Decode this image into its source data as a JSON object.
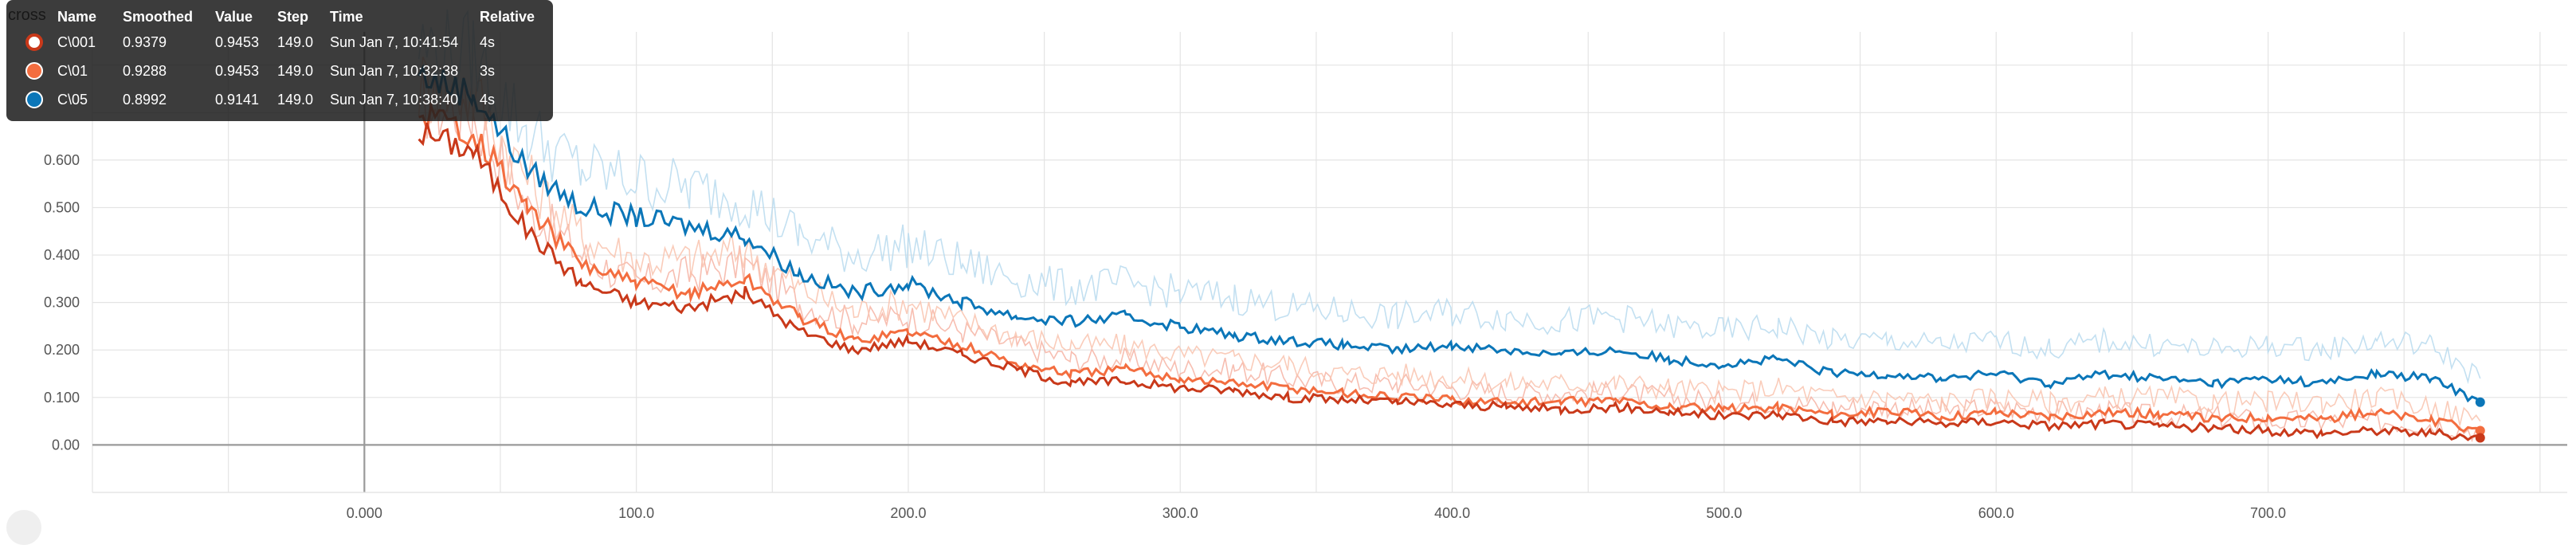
{
  "title_fragment": "cross",
  "tooltip": {
    "headers": [
      "Name",
      "Smoothed",
      "Value",
      "Step",
      "Time",
      "Relative"
    ],
    "rows": [
      {
        "name": "C\\001",
        "smoothed": "0.9379",
        "value": "0.9453",
        "step": "149.0",
        "time": "Sun Jan 7, 10:41:54",
        "relative": "4s",
        "color": "#c9391a",
        "hollow": true
      },
      {
        "name": "C\\01",
        "smoothed": "0.9288",
        "value": "0.9453",
        "step": "149.0",
        "time": "Sun Jan 7, 10:32:38",
        "relative": "3s",
        "color": "#f36d3f",
        "hollow": false
      },
      {
        "name": "C\\05",
        "smoothed": "0.8992",
        "value": "0.9141",
        "step": "149.0",
        "time": "Sun Jan 7, 10:38:40",
        "relative": "4s",
        "color": "#0b76b8",
        "hollow": false
      }
    ]
  },
  "chart_data": {
    "type": "line",
    "title": "",
    "xlabel": "",
    "ylabel": "",
    "xlim": [
      -100,
      810
    ],
    "ylim": [
      -0.1,
      0.87
    ],
    "x_ticks": [
      "0.000",
      "100.0",
      "200.0",
      "300.0",
      "400.0",
      "500.0",
      "600.0",
      "700.0"
    ],
    "x_tick_values": [
      0,
      100,
      200,
      300,
      400,
      500,
      600,
      700
    ],
    "y_ticks": [
      "0.00",
      "0.100",
      "0.200",
      "0.300",
      "0.400",
      "0.500",
      "0.600"
    ],
    "y_tick_values": [
      0.0,
      0.1,
      0.2,
      0.3,
      0.4,
      0.5,
      0.6
    ],
    "grid": true,
    "x": [
      20,
      40,
      60,
      80,
      100,
      120,
      140,
      160,
      180,
      200,
      220,
      240,
      260,
      280,
      300,
      320,
      340,
      360,
      380,
      400,
      420,
      440,
      460,
      480,
      500,
      520,
      540,
      560,
      580,
      600,
      620,
      640,
      660,
      680,
      700,
      720,
      740,
      760,
      778
    ],
    "series": [
      {
        "name": "C\\001",
        "color": "#c9391a",
        "raw_color": "#f6b3a3",
        "smoothed": [
          0.66,
          0.62,
          0.45,
          0.34,
          0.3,
          0.29,
          0.32,
          0.24,
          0.2,
          0.22,
          0.19,
          0.16,
          0.13,
          0.135,
          0.12,
          0.115,
          0.1,
          0.095,
          0.09,
          0.085,
          0.08,
          0.075,
          0.08,
          0.07,
          0.06,
          0.065,
          0.05,
          0.05,
          0.045,
          0.05,
          0.04,
          0.045,
          0.04,
          0.035,
          0.03,
          0.025,
          0.03,
          0.025,
          0.015
        ],
        "raw": [
          0.72,
          0.7,
          0.5,
          0.4,
          0.34,
          0.36,
          0.38,
          0.3,
          0.26,
          0.27,
          0.24,
          0.21,
          0.18,
          0.18,
          0.16,
          0.16,
          0.14,
          0.13,
          0.13,
          0.12,
          0.11,
          0.11,
          0.11,
          0.1,
          0.09,
          0.09,
          0.08,
          0.08,
          0.07,
          0.08,
          0.07,
          0.07,
          0.06,
          0.06,
          0.05,
          0.05,
          0.05,
          0.045,
          0.03
        ]
      },
      {
        "name": "C\\01",
        "color": "#f36d3f",
        "raw_color": "#f9c3ae",
        "smoothed": [
          0.7,
          0.66,
          0.5,
          0.38,
          0.34,
          0.32,
          0.35,
          0.27,
          0.22,
          0.24,
          0.21,
          0.17,
          0.15,
          0.16,
          0.14,
          0.13,
          0.12,
          0.11,
          0.1,
          0.095,
          0.09,
          0.09,
          0.095,
          0.08,
          0.075,
          0.08,
          0.065,
          0.07,
          0.06,
          0.07,
          0.06,
          0.07,
          0.065,
          0.055,
          0.06,
          0.055,
          0.07,
          0.05,
          0.03
        ],
        "raw": [
          0.76,
          0.74,
          0.56,
          0.44,
          0.39,
          0.39,
          0.41,
          0.33,
          0.28,
          0.3,
          0.26,
          0.23,
          0.21,
          0.21,
          0.19,
          0.18,
          0.17,
          0.15,
          0.15,
          0.14,
          0.13,
          0.13,
          0.13,
          0.12,
          0.11,
          0.12,
          0.1,
          0.1,
          0.09,
          0.1,
          0.09,
          0.1,
          0.1,
          0.09,
          0.09,
          0.09,
          0.1,
          0.08,
          0.05
        ]
      },
      {
        "name": "C\\05",
        "color": "#0b76b8",
        "raw_color": "#b9dbee",
        "smoothed": [
          0.78,
          0.74,
          0.58,
          0.5,
          0.48,
          0.46,
          0.44,
          0.36,
          0.32,
          0.34,
          0.3,
          0.27,
          0.26,
          0.27,
          0.25,
          0.23,
          0.22,
          0.21,
          0.2,
          0.21,
          0.2,
          0.19,
          0.2,
          0.18,
          0.17,
          0.18,
          0.15,
          0.15,
          0.14,
          0.15,
          0.13,
          0.15,
          0.14,
          0.13,
          0.14,
          0.13,
          0.15,
          0.14,
          0.09
        ],
        "raw": [
          0.84,
          0.82,
          0.66,
          0.58,
          0.56,
          0.54,
          0.52,
          0.44,
          0.4,
          0.42,
          0.38,
          0.35,
          0.33,
          0.34,
          0.32,
          0.31,
          0.29,
          0.28,
          0.27,
          0.28,
          0.27,
          0.26,
          0.27,
          0.25,
          0.24,
          0.25,
          0.22,
          0.22,
          0.21,
          0.22,
          0.2,
          0.22,
          0.21,
          0.2,
          0.21,
          0.2,
          0.22,
          0.21,
          0.14
        ]
      }
    ]
  }
}
